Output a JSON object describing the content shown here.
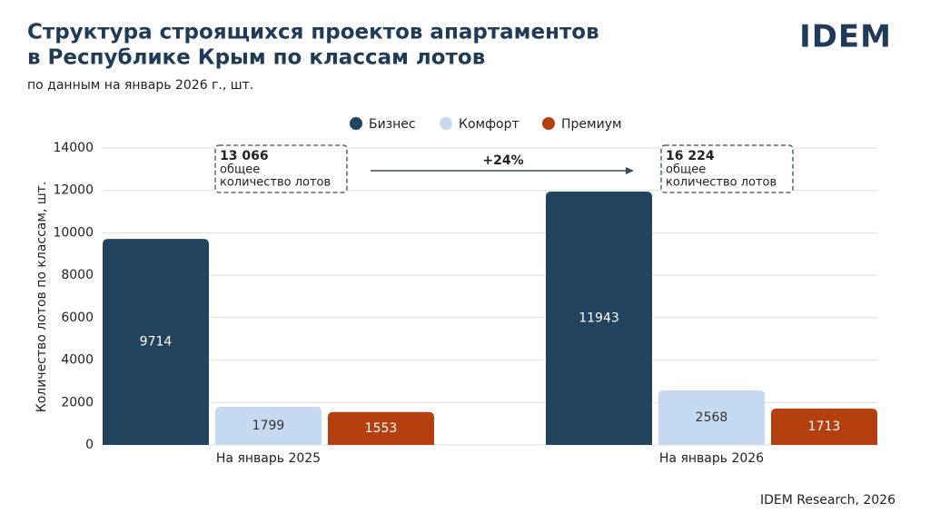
{
  "chart_data": {
    "type": "bar",
    "title": [
      "Структура строящихся проектов апартаментов",
      "в Республике Крым по классам лотов"
    ],
    "subtitle": "по данным на январь 2026 г., шт.",
    "logo": "IDEM",
    "y_label": "Количество лотов по классам, шт.",
    "categories": [
      "На январь 2025",
      "На январь 2026"
    ],
    "series": [
      {
        "name": "Бизнес",
        "color": "#22445f",
        "values": [
          9714,
          11943
        ]
      },
      {
        "name": "Комфорт",
        "color": "#c5d9f0",
        "values": [
          1799,
          2568
        ]
      },
      {
        "name": "Премиум",
        "color": "#b5400f",
        "values": [
          1553,
          1713
        ]
      }
    ],
    "ylim": [
      0,
      14000
    ],
    "yticks": [
      0,
      2000,
      4000,
      6000,
      8000,
      10000,
      12000,
      14000
    ],
    "grid": true,
    "legend": "top",
    "annotations": [
      {
        "total": "13 066",
        "text": [
          "общее",
          "количество лотов"
        ]
      },
      {
        "total": "16 224",
        "text": [
          "общее",
          "количество лотов"
        ]
      }
    ],
    "growth": "+24%",
    "source": "IDEM Research, 2026"
  }
}
